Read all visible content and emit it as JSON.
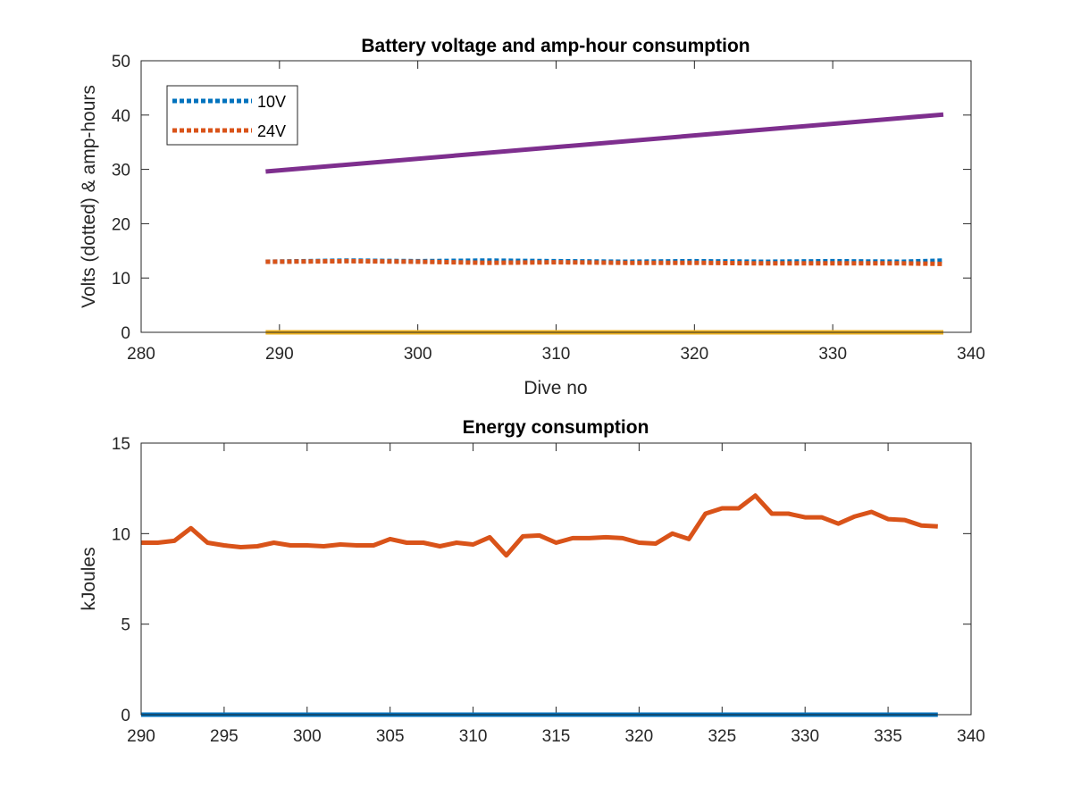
{
  "chart_data": [
    {
      "type": "line",
      "title": "Battery voltage and amp-hour consumption",
      "xlabel": "Dive no",
      "ylabel": "Volts (dotted) & amp-hours",
      "xlim": [
        280,
        340
      ],
      "ylim": [
        0,
        50
      ],
      "xticks": [
        280,
        290,
        300,
        310,
        320,
        330,
        340
      ],
      "yticks": [
        0,
        10,
        20,
        30,
        40,
        50
      ],
      "legend_position": "top-left",
      "series": [
        {
          "name": "10V",
          "style": "dotted",
          "color": "#0072BD",
          "x": [
            289,
            295,
            300,
            305,
            310,
            315,
            320,
            325,
            330,
            335,
            338
          ],
          "y": [
            13,
            13.2,
            13.1,
            13.2,
            13.1,
            13.0,
            13.1,
            13.0,
            13.1,
            13.0,
            13.2
          ]
        },
        {
          "name": "24V",
          "style": "dotted",
          "color": "#D95319",
          "x": [
            289,
            295,
            300,
            305,
            310,
            315,
            320,
            325,
            330,
            335,
            338
          ],
          "y": [
            13,
            13.1,
            13.0,
            12.8,
            12.9,
            12.8,
            12.8,
            12.7,
            12.7,
            12.7,
            12.6
          ]
        },
        {
          "style": "solid",
          "color": "#7E2F8E",
          "x": [
            289,
            338
          ],
          "y": [
            29.6,
            40.1
          ]
        },
        {
          "style": "solid",
          "color": "#EDB120",
          "x": [
            289,
            338
          ],
          "y": [
            0,
            0
          ]
        }
      ]
    },
    {
      "type": "line",
      "title": "Energy consumption",
      "xlabel": "",
      "ylabel": "kJoules",
      "xlim": [
        290,
        340
      ],
      "ylim": [
        0,
        15
      ],
      "xticks": [
        290,
        295,
        300,
        305,
        310,
        315,
        320,
        325,
        330,
        335,
        340
      ],
      "yticks": [
        0,
        5,
        10,
        15
      ],
      "series": [
        {
          "style": "solid",
          "color": "#D95319",
          "x": [
            290,
            291,
            292,
            293,
            294,
            295,
            296,
            297,
            298,
            299,
            300,
            301,
            302,
            303,
            304,
            305,
            306,
            307,
            308,
            309,
            310,
            311,
            312,
            313,
            314,
            315,
            316,
            317,
            318,
            319,
            320,
            321,
            322,
            323,
            324,
            325,
            326,
            327,
            328,
            329,
            330,
            331,
            332,
            333,
            334,
            335,
            336,
            337,
            338
          ],
          "y": [
            9.5,
            9.5,
            9.6,
            10.3,
            9.5,
            9.35,
            9.25,
            9.3,
            9.5,
            9.35,
            9.35,
            9.3,
            9.4,
            9.35,
            9.35,
            9.7,
            9.5,
            9.5,
            9.3,
            9.5,
            9.4,
            9.8,
            8.8,
            9.85,
            9.9,
            9.5,
            9.75,
            9.75,
            9.8,
            9.75,
            9.5,
            9.45,
            10.0,
            9.7,
            11.1,
            11.4,
            11.4,
            12.1,
            11.1,
            11.1,
            10.9,
            10.9,
            10.55,
            10.95,
            11.2,
            10.8,
            10.75,
            10.45,
            10.4
          ]
        },
        {
          "style": "solid",
          "color": "#0072BD",
          "x": [
            290,
            338
          ],
          "y": [
            0,
            0
          ]
        }
      ]
    }
  ]
}
